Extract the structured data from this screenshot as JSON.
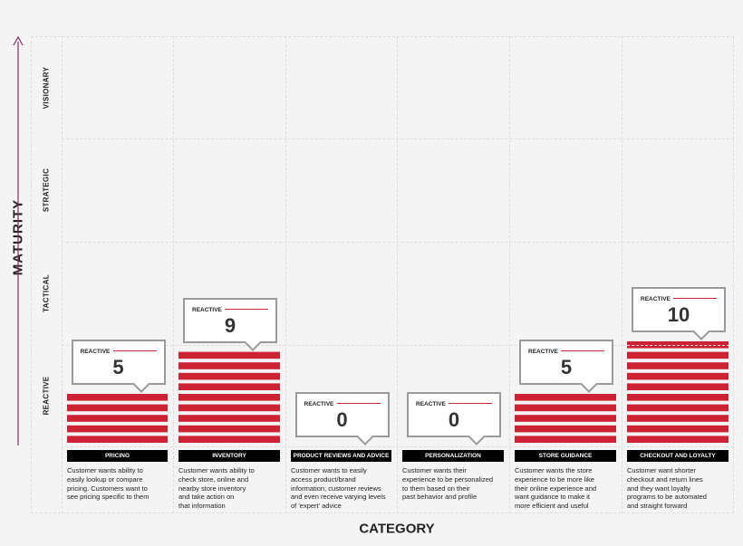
{
  "chart_data": {
    "type": "bar",
    "xlabel": "CATEGORY",
    "ylabel": "MATURITY",
    "maturity_levels": [
      "VISIONARY",
      "STRATEGIC",
      "TACTICAL",
      "REACTIVE"
    ],
    "categories": [
      "PRICING",
      "INVENTORY",
      "PRODUCT REVIEWS AND ADVICE",
      "PERSONALIZATION",
      "STORE GUIDANCE",
      "CHECKOUT AND LOYALTY"
    ],
    "values": [
      5,
      9,
      0,
      0,
      5,
      10
    ],
    "levels": [
      "REACTIVE",
      "REACTIVE",
      "REACTIVE",
      "REACTIVE",
      "REACTIVE",
      "REACTIVE"
    ],
    "descriptions": [
      [
        "Customer wants ability to",
        "easily lookup or compare",
        "pricing. Customers want to",
        "see pricing specific to them"
      ],
      [
        "Customer wants ability to",
        "check store, online and",
        "nearby store inventory",
        "and take action on",
        "that information"
      ],
      [
        "Customer wants to easily",
        "access product/brand",
        "information, customer reviews",
        "and even receive varying levels",
        "of 'expert' advice"
      ],
      [
        "Customer wants their",
        "experience to be personalized",
        "to them based on their",
        "past behavior and profile"
      ],
      [
        "Customer wants the store",
        "experience to be more like",
        "their online experience and",
        "want guidance to make it",
        "more efficient and useful"
      ],
      [
        "Customer want shorter",
        "checkout and return lines",
        "and they want loyalty",
        "programs to be automated",
        "and straight forward"
      ]
    ],
    "colors": {
      "bar": "#cc2233",
      "label_bg": "#000000",
      "arrow": "#8a2a6a",
      "callout_border": "#9a9a9a"
    }
  }
}
